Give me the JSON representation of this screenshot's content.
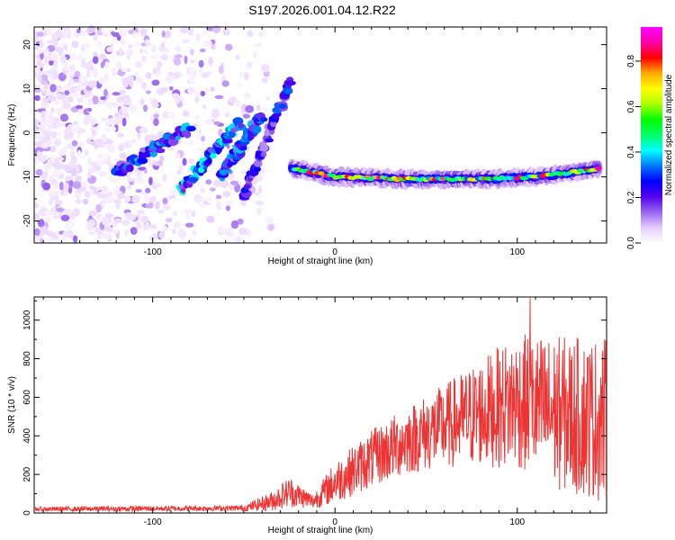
{
  "figure": {
    "title": "S197.2026.001.04.12.R22"
  },
  "chart_data": [
    {
      "type": "heatmap",
      "title": "",
      "xlabel": "Height of straight line (km)",
      "ylabel": "Frequency (Hz)",
      "xlim": [
        -165,
        149
      ],
      "ylim": [
        -25,
        24
      ],
      "xticks": [
        -100,
        0,
        100
      ],
      "yticks": [
        20,
        10,
        0,
        -10,
        -20
      ],
      "colorbar": {
        "label": "Normalized spectral amplitude",
        "range": [
          0,
          0.95
        ],
        "ticks": [
          0.0,
          0.2,
          0.4,
          0.6,
          0.8
        ],
        "colormap": [
          "#ffffff",
          "#e6ccff",
          "#9966ee",
          "#5500ee",
          "#0000ff",
          "#0077ff",
          "#00ffff",
          "#00ff66",
          "#00ff00",
          "#aaff00",
          "#ffff00",
          "#ffaa00",
          "#ff0000",
          "#ff00aa",
          "#ff00ff"
        ]
      },
      "features": {
        "steady_band": {
          "x": [
            -24,
            145
          ],
          "freq": [
            -8,
            -10,
            -10.5,
            -10.5,
            -10,
            -9,
            -8
          ],
          "at_x": [
            -24,
            0,
            40,
            80,
            110,
            130,
            145
          ],
          "peak_level": 0.95
        },
        "chirps": [
          {
            "x": [
              -120,
              -80
            ],
            "freq": [
              -9,
              1
            ],
            "level": 0.35
          },
          {
            "x": [
              -85,
              -52
            ],
            "freq": [
              -13,
              2
            ],
            "level": 0.4
          },
          {
            "x": [
              -63,
              -40
            ],
            "freq": [
              -10,
              4
            ],
            "level": 0.35
          },
          {
            "x": [
              -50,
              -24
            ],
            "freq": [
              -14,
              12
            ],
            "level": 0.3
          }
        ],
        "background_noise_x_range": [
          -165,
          -50
        ]
      }
    },
    {
      "type": "line",
      "title": "",
      "xlabel": "Height of straight line (km)",
      "ylabel": "SNR (10 * v/v)",
      "xlim": [
        -165,
        149
      ],
      "ylim": [
        0,
        1120
      ],
      "xticks": [
        -100,
        0,
        100
      ],
      "yticks": [
        0,
        200,
        400,
        600,
        800,
        1000
      ],
      "series": [
        {
          "name": "SNR",
          "color": "#ee3333",
          "envelope_x": [
            -165,
            -50,
            -35,
            -25,
            -12,
            0,
            20,
            40,
            60,
            80,
            100,
            120,
            149
          ],
          "envelope_mean": [
            20,
            25,
            60,
            110,
            60,
            160,
            280,
            380,
            450,
            520,
            580,
            520,
            480
          ],
          "envelope_amp": [
            12,
            15,
            50,
            80,
            40,
            110,
            150,
            180,
            220,
            280,
            350,
            400,
            430
          ],
          "peak": {
            "x": 107,
            "y": 1115
          }
        }
      ]
    }
  ]
}
